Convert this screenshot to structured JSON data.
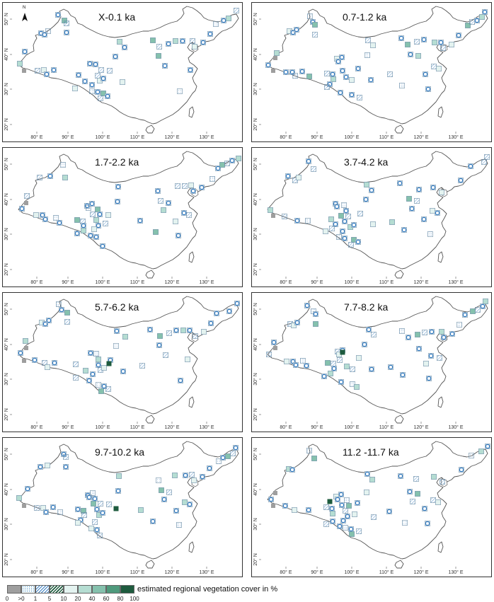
{
  "panels": [
    {
      "title": "X-0.1 ka"
    },
    {
      "title": "0.7-1.2 ka"
    },
    {
      "title": "1.7-2.2 ka"
    },
    {
      "title": "3.7-4.2 ka"
    },
    {
      "title": "5.7-6.2 ka"
    },
    {
      "title": "7.7-8.2 ka"
    },
    {
      "title": "9.7-10.2 ka"
    },
    {
      "title": "11.2 -11.7 ka"
    }
  ],
  "north_label": "N",
  "lon_labels": [
    "80° E",
    "90° E",
    "100° E",
    "110° E",
    "120° E",
    "130° E"
  ],
  "lat_labels": [
    "50° N",
    "40° N",
    "30° N",
    "20° N"
  ],
  "legend": {
    "title": "estimated regional vegetation cover in %",
    "tick_labels": [
      "0",
      ">0",
      "1",
      "5",
      "10",
      "20",
      "40",
      "60",
      "80",
      "100"
    ],
    "classes": [
      {
        "range": "0",
        "color": "#9e9e9e"
      },
      {
        "range": ">0-1",
        "color": "#f4fbfb",
        "pattern": "dots"
      },
      {
        "range": "1-5",
        "color": "#ffffff",
        "pattern": "hatch-light"
      },
      {
        "range": "5-10",
        "color": "#ffffff",
        "pattern": "hatch-dark"
      },
      {
        "range": "10-20",
        "color": "#e4f3f0"
      },
      {
        "range": "20-40",
        "color": "#b5ddd2"
      },
      {
        "range": "40-60",
        "color": "#85c1ad"
      },
      {
        "range": "60-80",
        "color": "#4f9a7c"
      },
      {
        "range": "80-100",
        "color": "#1e5b3e"
      }
    ]
  },
  "colors": {
    "site_outline": "#3a7fc1",
    "map_outline": "#555555"
  }
}
